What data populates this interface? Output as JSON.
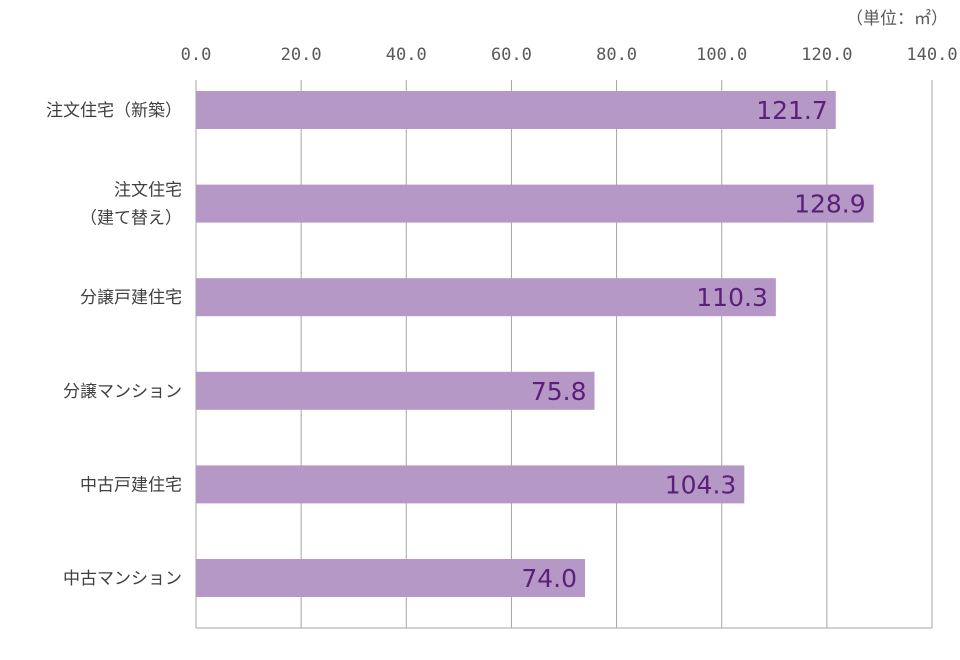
{
  "chart_data": {
    "type": "bar",
    "orientation": "horizontal",
    "unit_label": "（単位：㎡）",
    "categories": [
      [
        "注文住宅（新築）"
      ],
      [
        "注文住宅",
        "（建て替え）"
      ],
      [
        "分譲戸建住宅"
      ],
      [
        "分譲マンション"
      ],
      [
        "中古戸建住宅"
      ],
      [
        "中古マンション"
      ]
    ],
    "values": [
      121.7,
      128.9,
      110.3,
      75.8,
      104.3,
      74.0
    ],
    "data_labels": [
      "121.7",
      "128.9",
      "110.3",
      "75.8",
      "104.3",
      "74.0"
    ],
    "xlim": [
      0,
      140
    ],
    "ticks": [
      "0.0",
      "20.0",
      "40.0",
      "60.0",
      "80.0",
      "100.0",
      "120.0",
      "140.0"
    ],
    "grid": true,
    "legend": "none",
    "colors": {
      "bar": "#b698c6",
      "data_label": "#5a1f78",
      "grid": "#a6a6a6",
      "text": "#404040"
    }
  }
}
